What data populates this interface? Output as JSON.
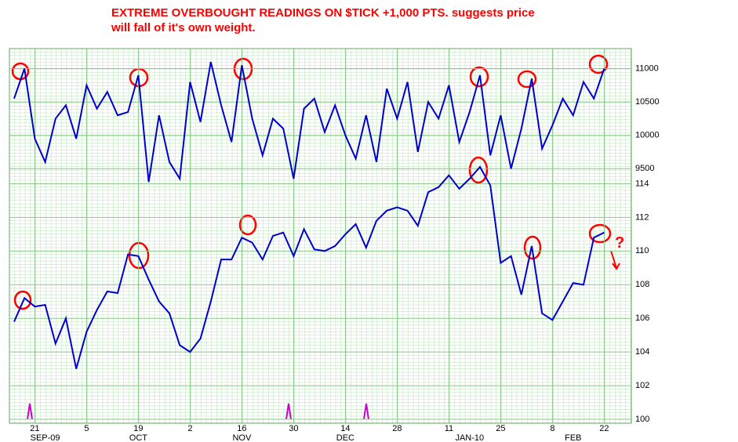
{
  "title_lines": [
    "EXTREME OVERBOUGHT READINGS ON $TICK +1,000 PTS.  suggests price",
    "will fall of it's own weight."
  ],
  "chart_data": [
    {
      "type": "line",
      "color": "#0000cc",
      "ylim": [
        9150,
        11300
      ],
      "yticks": [
        9500,
        10000,
        10500,
        11000
      ],
      "values": [
        10550,
        11000,
        9950,
        9600,
        10250,
        10450,
        9950,
        10750,
        10400,
        10650,
        10300,
        10350,
        10900,
        9300,
        10300,
        9600,
        9350,
        10800,
        10200,
        11100,
        10450,
        9900,
        11050,
        10250,
        9700,
        10250,
        10100,
        9350,
        10400,
        10550,
        10050,
        10450,
        10000,
        9650,
        10300,
        9600,
        10700,
        10250,
        10800,
        9750,
        10500,
        10250,
        10750,
        9900,
        10350,
        10900,
        9700,
        10300,
        9500,
        10100,
        10850,
        9800,
        10150,
        10550,
        10300,
        10800,
        10550,
        11000
      ]
    },
    {
      "type": "line",
      "color": "#0000cc",
      "ylim": [
        100,
        115
      ],
      "yticks": [
        100,
        102,
        104,
        106,
        108,
        110,
        112,
        114
      ],
      "annotation": "?",
      "categories": [
        null,
        null,
        "21",
        null,
        null,
        null,
        null,
        "5",
        null,
        null,
        null,
        null,
        "19",
        null,
        null,
        null,
        null,
        "2",
        null,
        null,
        null,
        null,
        "16",
        null,
        null,
        null,
        null,
        "30",
        null,
        null,
        null,
        null,
        "14",
        null,
        null,
        null,
        null,
        "28",
        null,
        null,
        null,
        null,
        "11",
        null,
        null,
        null,
        null,
        "25",
        null,
        null,
        null,
        null,
        "8",
        null,
        null,
        null,
        null,
        "22"
      ],
      "month_categories": [
        null,
        null,
        null,
        "SEP-09",
        null,
        null,
        null,
        null,
        null,
        null,
        null,
        null,
        "OCT",
        null,
        null,
        null,
        null,
        null,
        null,
        null,
        null,
        null,
        "NOV",
        null,
        null,
        null,
        null,
        null,
        null,
        null,
        null,
        null,
        "DEC",
        null,
        null,
        null,
        null,
        null,
        null,
        null,
        null,
        null,
        null,
        null,
        "JAN-10",
        null,
        null,
        null,
        null,
        null,
        null,
        null,
        null,
        null,
        "FEB",
        null,
        null,
        null
      ],
      "values": [
        105.8,
        107.2,
        106.7,
        106.8,
        104.5,
        106.0,
        103.0,
        105.2,
        106.5,
        107.6,
        107.5,
        109.8,
        109.7,
        108.3,
        107.0,
        106.3,
        104.4,
        104.0,
        104.8,
        107.0,
        109.5,
        109.5,
        110.8,
        110.5,
        109.5,
        110.9,
        111.1,
        109.7,
        111.3,
        110.1,
        110.0,
        110.3,
        111.0,
        111.6,
        110.2,
        111.8,
        112.4,
        112.6,
        112.4,
        111.5,
        113.5,
        113.8,
        114.5,
        113.7,
        114.3,
        115.0,
        113.9,
        109.3,
        109.7,
        107.4,
        110.3,
        106.3,
        105.9,
        107.0,
        108.1,
        108.0,
        110.8,
        111.1
      ]
    }
  ]
}
